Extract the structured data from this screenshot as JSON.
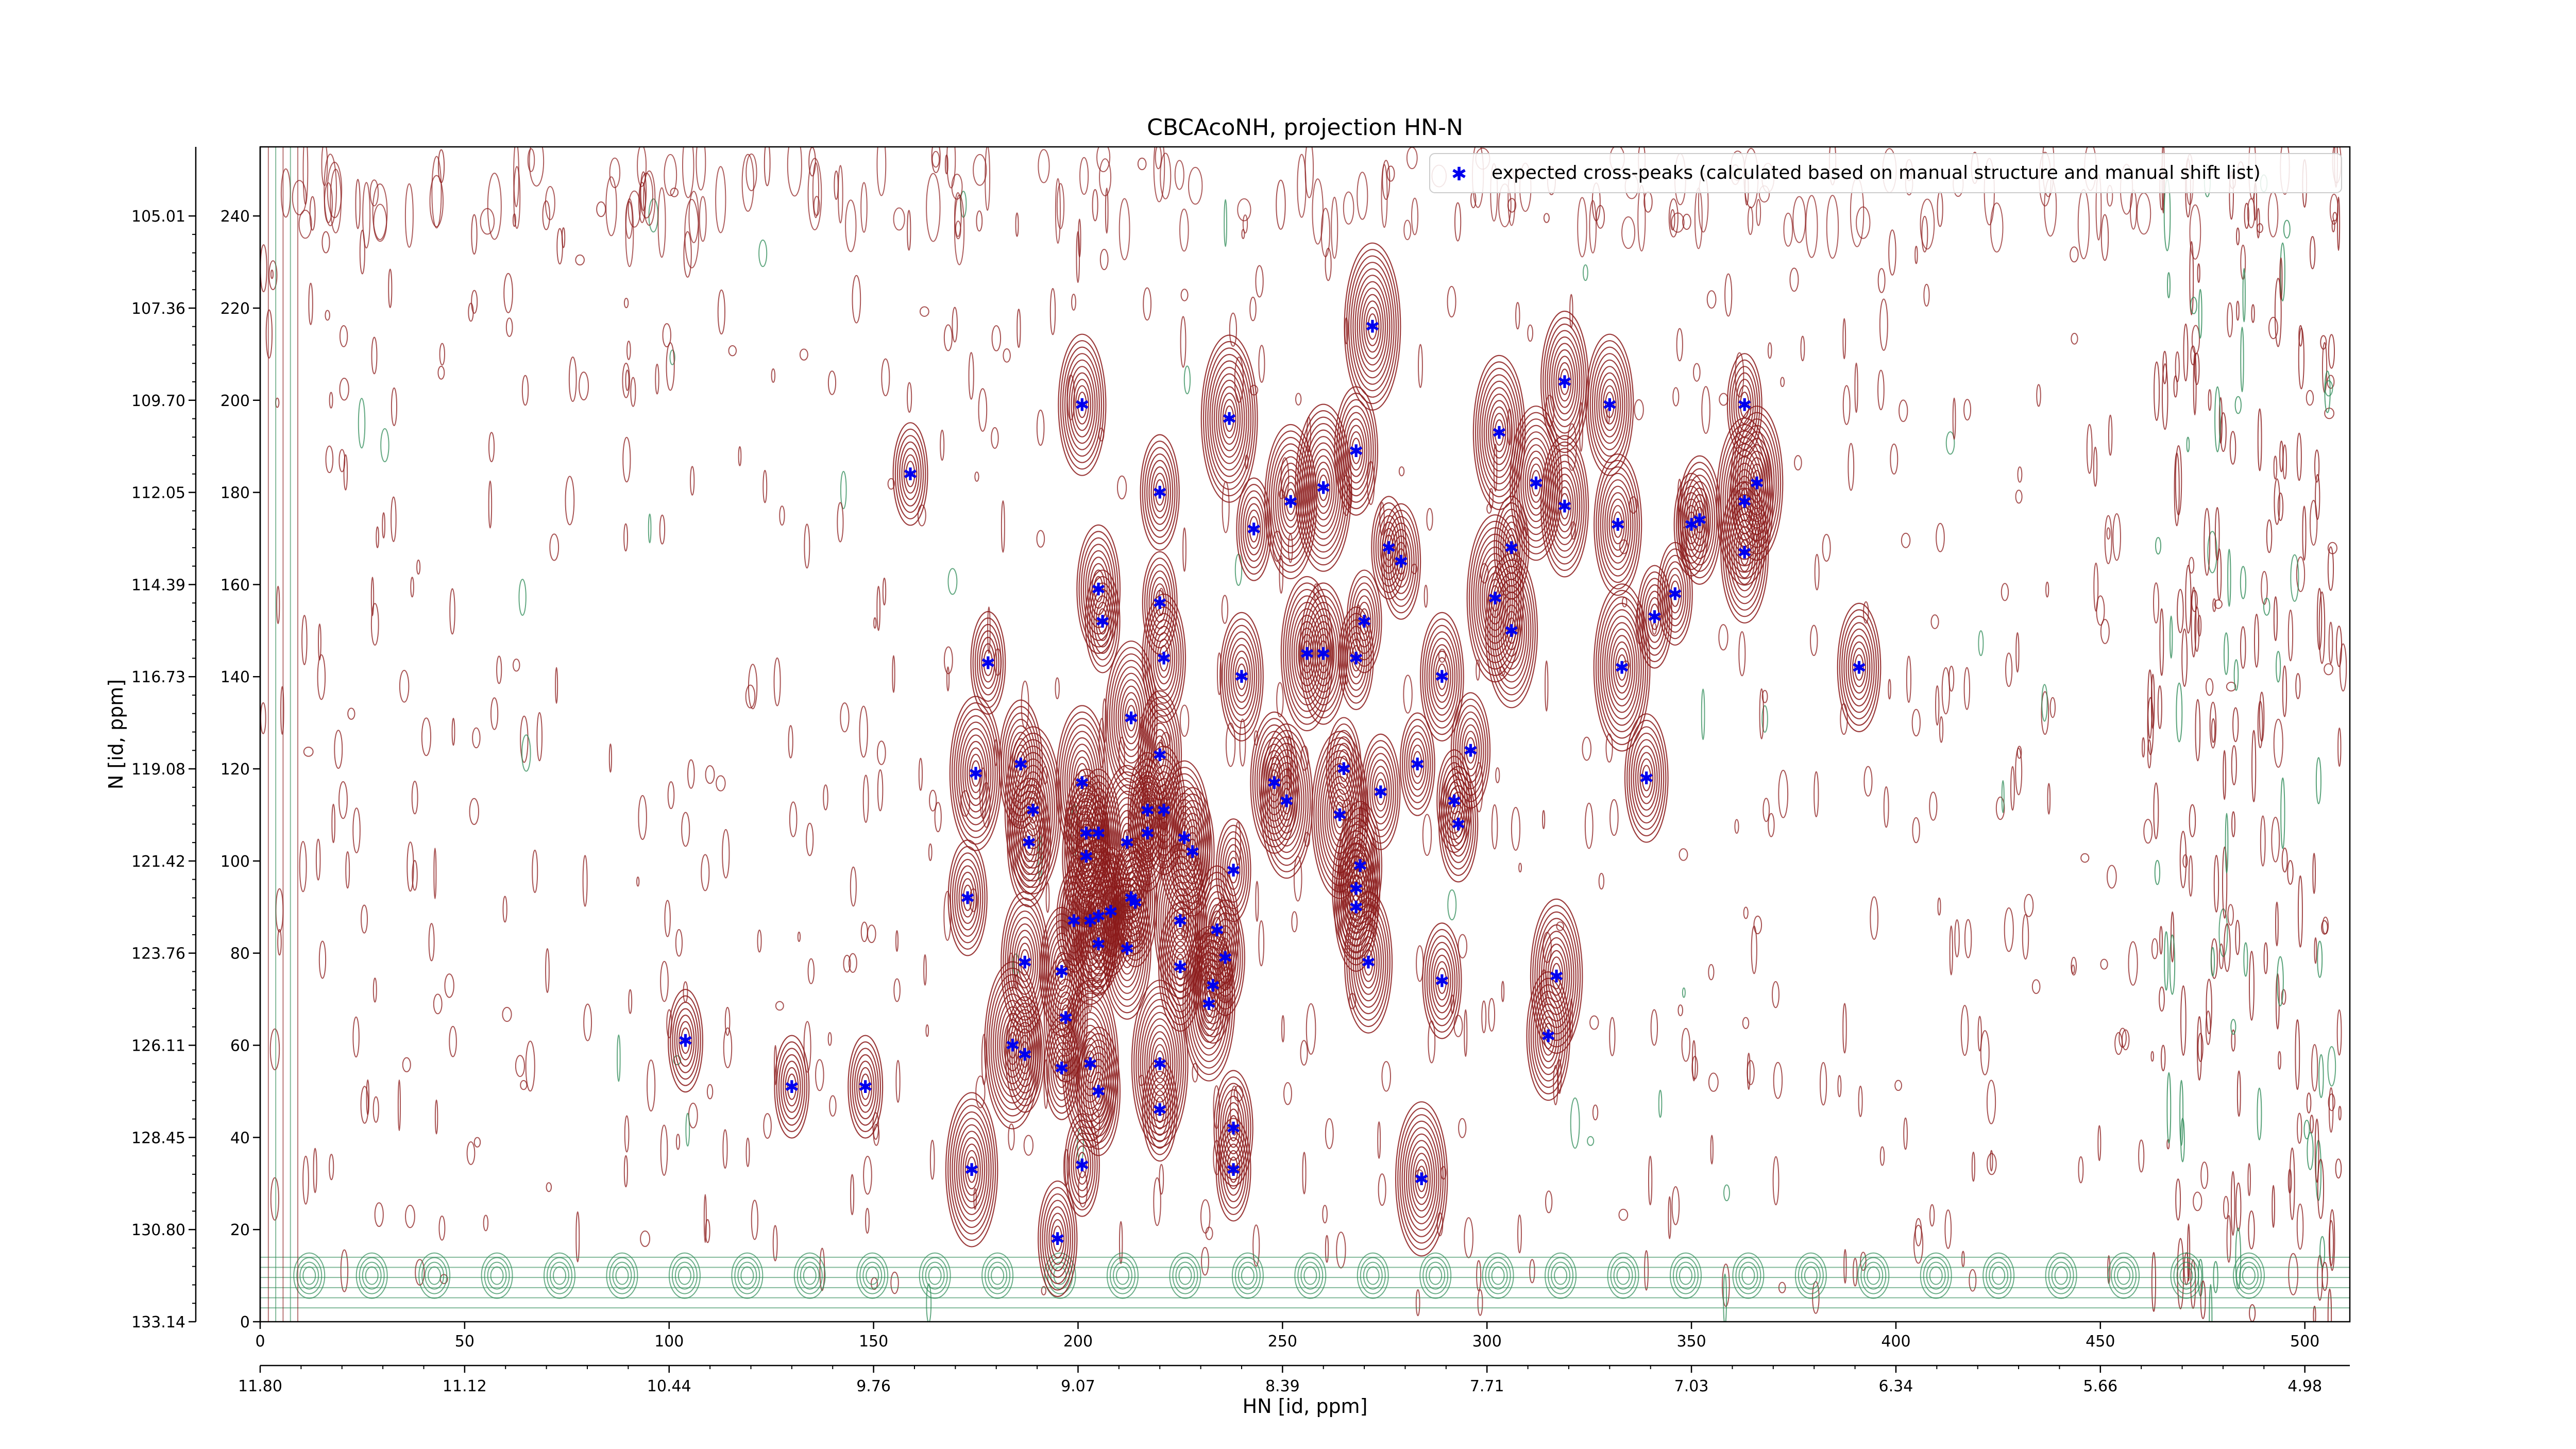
{
  "chart_data": {
    "type": "scatter",
    "title": "CBCAcoNH, projection HN-N",
    "xlabel": "HN [id, ppm]",
    "ylabel": "N [id, ppm]",
    "xlim": [
      0,
      511
    ],
    "ylim": [
      0,
      255
    ],
    "x_ticks_index": [
      "0",
      "50",
      "100",
      "150",
      "200",
      "250",
      "300",
      "350",
      "400",
      "450",
      "500"
    ],
    "x_ticks_ppm": [
      "11.80",
      "11.12",
      "10.44",
      "9.76",
      "9.07",
      "8.39",
      "7.71",
      "7.03",
      "6.34",
      "5.66",
      "4.98"
    ],
    "y_ticks_index": [
      "0",
      "20",
      "40",
      "60",
      "80",
      "100",
      "120",
      "140",
      "160",
      "180",
      "200",
      "220",
      "240"
    ],
    "y_ticks_ppm": [
      "133.14",
      "130.80",
      "128.45",
      "126.11",
      "123.76",
      "121.42",
      "119.08",
      "116.73",
      "114.39",
      "112.05",
      "109.70",
      "107.36",
      "105.01"
    ],
    "legend": {
      "placement": "top-right",
      "label": "expected cross-peaks (calculated based on manual structure and manual shift list)"
    },
    "colors": {
      "positive_contour": "#8b1a1a",
      "negative_contour": "#2e8b57",
      "peak_marker": "#0000ee"
    },
    "grid": false,
    "series": [
      {
        "name": "expected cross-peaks (calculated based on manual structure and manual shift list)",
        "points": [
          {
            "x": 159,
            "y": 184
          },
          {
            "x": 201,
            "y": 199
          },
          {
            "x": 237,
            "y": 196
          },
          {
            "x": 272,
            "y": 216
          },
          {
            "x": 319,
            "y": 204
          },
          {
            "x": 330,
            "y": 199
          },
          {
            "x": 363,
            "y": 199
          },
          {
            "x": 303,
            "y": 193
          },
          {
            "x": 268,
            "y": 189
          },
          {
            "x": 312,
            "y": 182
          },
          {
            "x": 319,
            "y": 177
          },
          {
            "x": 366,
            "y": 182
          },
          {
            "x": 220,
            "y": 180
          },
          {
            "x": 252,
            "y": 178
          },
          {
            "x": 260,
            "y": 181
          },
          {
            "x": 243,
            "y": 172
          },
          {
            "x": 332,
            "y": 173
          },
          {
            "x": 350,
            "y": 173
          },
          {
            "x": 352,
            "y": 174
          },
          {
            "x": 363,
            "y": 178
          },
          {
            "x": 363,
            "y": 167
          },
          {
            "x": 276,
            "y": 168
          },
          {
            "x": 279,
            "y": 165
          },
          {
            "x": 306,
            "y": 168
          },
          {
            "x": 205,
            "y": 159
          },
          {
            "x": 220,
            "y": 156
          },
          {
            "x": 206,
            "y": 152
          },
          {
            "x": 270,
            "y": 152
          },
          {
            "x": 302,
            "y": 157
          },
          {
            "x": 306,
            "y": 150
          },
          {
            "x": 346,
            "y": 158
          },
          {
            "x": 341,
            "y": 153
          },
          {
            "x": 178,
            "y": 143
          },
          {
            "x": 221,
            "y": 144
          },
          {
            "x": 240,
            "y": 140
          },
          {
            "x": 256,
            "y": 145
          },
          {
            "x": 260,
            "y": 145
          },
          {
            "x": 268,
            "y": 144
          },
          {
            "x": 289,
            "y": 140
          },
          {
            "x": 333,
            "y": 142
          },
          {
            "x": 391,
            "y": 142
          },
          {
            "x": 213,
            "y": 131
          },
          {
            "x": 220,
            "y": 123
          },
          {
            "x": 175,
            "y": 119
          },
          {
            "x": 186,
            "y": 121
          },
          {
            "x": 201,
            "y": 117
          },
          {
            "x": 248,
            "y": 117
          },
          {
            "x": 251,
            "y": 113
          },
          {
            "x": 265,
            "y": 120
          },
          {
            "x": 274,
            "y": 115
          },
          {
            "x": 283,
            "y": 121
          },
          {
            "x": 296,
            "y": 124
          },
          {
            "x": 339,
            "y": 118
          },
          {
            "x": 292,
            "y": 113
          },
          {
            "x": 293,
            "y": 108
          },
          {
            "x": 189,
            "y": 111
          },
          {
            "x": 188,
            "y": 104
          },
          {
            "x": 202,
            "y": 106
          },
          {
            "x": 205,
            "y": 106
          },
          {
            "x": 202,
            "y": 101
          },
          {
            "x": 212,
            "y": 104
          },
          {
            "x": 217,
            "y": 111
          },
          {
            "x": 221,
            "y": 111
          },
          {
            "x": 217,
            "y": 106
          },
          {
            "x": 226,
            "y": 105
          },
          {
            "x": 228,
            "y": 102
          },
          {
            "x": 238,
            "y": 98
          },
          {
            "x": 264,
            "y": 110
          },
          {
            "x": 269,
            "y": 99
          },
          {
            "x": 268,
            "y": 94
          },
          {
            "x": 268,
            "y": 90
          },
          {
            "x": 173,
            "y": 92
          },
          {
            "x": 199,
            "y": 87
          },
          {
            "x": 203,
            "y": 87
          },
          {
            "x": 205,
            "y": 88
          },
          {
            "x": 208,
            "y": 89
          },
          {
            "x": 213,
            "y": 92
          },
          {
            "x": 214,
            "y": 91
          },
          {
            "x": 225,
            "y": 87
          },
          {
            "x": 234,
            "y": 85
          },
          {
            "x": 205,
            "y": 82
          },
          {
            "x": 212,
            "y": 81
          },
          {
            "x": 236,
            "y": 79
          },
          {
            "x": 187,
            "y": 78
          },
          {
            "x": 196,
            "y": 76
          },
          {
            "x": 225,
            "y": 77
          },
          {
            "x": 233,
            "y": 73
          },
          {
            "x": 271,
            "y": 78
          },
          {
            "x": 289,
            "y": 74
          },
          {
            "x": 317,
            "y": 75
          },
          {
            "x": 232,
            "y": 69
          },
          {
            "x": 197,
            "y": 66
          },
          {
            "x": 104,
            "y": 61
          },
          {
            "x": 184,
            "y": 60
          },
          {
            "x": 187,
            "y": 58
          },
          {
            "x": 203,
            "y": 56
          },
          {
            "x": 196,
            "y": 55
          },
          {
            "x": 220,
            "y": 56
          },
          {
            "x": 315,
            "y": 62
          },
          {
            "x": 130,
            "y": 51
          },
          {
            "x": 148,
            "y": 51
          },
          {
            "x": 205,
            "y": 50
          },
          {
            "x": 220,
            "y": 46
          },
          {
            "x": 238,
            "y": 42
          },
          {
            "x": 174,
            "y": 33
          },
          {
            "x": 201,
            "y": 34
          },
          {
            "x": 238,
            "y": 33
          },
          {
            "x": 284,
            "y": 31
          },
          {
            "x": 195,
            "y": 18
          }
        ]
      }
    ]
  }
}
